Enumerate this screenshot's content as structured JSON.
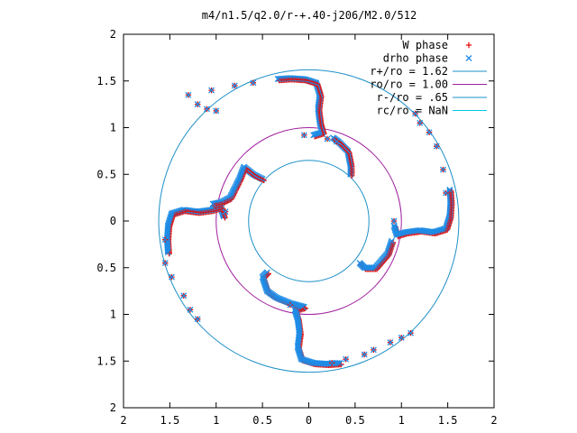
{
  "chart_data": {
    "type": "scatter",
    "title": "m4/n1.5/q2.0/r-+.40-j206/M2.0/512",
    "xlabel": "",
    "ylabel": "",
    "xlim": [
      -2,
      2
    ],
    "ylim": [
      -2,
      2
    ],
    "x_ticks": [
      {
        "value": -2,
        "label": "2"
      },
      {
        "value": -1.5,
        "label": "1.5"
      },
      {
        "value": -1,
        "label": "1"
      },
      {
        "value": -0.5,
        "label": "0.5"
      },
      {
        "value": 0,
        "label": "0"
      },
      {
        "value": 0.5,
        "label": "0.5"
      },
      {
        "value": 1,
        "label": "1"
      },
      {
        "value": 1.5,
        "label": "1.5"
      },
      {
        "value": 2,
        "label": "2"
      }
    ],
    "y_ticks": [
      {
        "value": 2,
        "label": "2"
      },
      {
        "value": 1.5,
        "label": "1.5"
      },
      {
        "value": 1,
        "label": "1"
      },
      {
        "value": 0.5,
        "label": "0.5"
      },
      {
        "value": 0,
        "label": "0"
      },
      {
        "value": -0.5,
        "label": "0.5"
      },
      {
        "value": -1,
        "label": "1"
      },
      {
        "value": -1.5,
        "label": "1.5"
      },
      {
        "value": -2,
        "label": "2"
      }
    ],
    "grid": false,
    "legend_position": "top-right",
    "circles": [
      {
        "name": "r+/ro = 1.62",
        "radius": 1.62,
        "color": "#1e90c8"
      },
      {
        "name": "ro/ro = 1.00",
        "radius": 1.0,
        "color": "#a020a0"
      },
      {
        "name": "r-/ro = .65",
        "radius": 0.65,
        "color": "#1e90c8"
      },
      {
        "name": "rc/ro = NaN",
        "radius": null,
        "color": "#00c8e6"
      }
    ],
    "series": [
      {
        "name": "W phase",
        "marker": "plus",
        "color": "#e01010"
      },
      {
        "name": "drho phase",
        "marker": "cross",
        "color": "#1e8ce6"
      }
    ],
    "arms": [
      [
        [
          0.05,
          0.92
        ],
        [
          0.15,
          0.95
        ],
        [
          0.12,
          1.05
        ],
        [
          0.1,
          1.2
        ],
        [
          0.12,
          1.35
        ],
        [
          0.08,
          1.48
        ],
        [
          -0.05,
          1.52
        ],
        [
          -0.2,
          1.53
        ],
        [
          -0.35,
          1.52
        ]
      ],
      [
        [
          -0.92,
          0.05
        ],
        [
          -0.95,
          0.15
        ],
        [
          -1.05,
          0.12
        ],
        [
          -1.2,
          0.1
        ],
        [
          -1.35,
          0.12
        ],
        [
          -1.48,
          0.08
        ],
        [
          -1.52,
          -0.05
        ],
        [
          -1.53,
          -0.2
        ],
        [
          -1.52,
          -0.35
        ]
      ],
      [
        [
          -0.05,
          -0.92
        ],
        [
          -0.15,
          -0.95
        ],
        [
          -0.12,
          -1.05
        ],
        [
          -0.1,
          -1.2
        ],
        [
          -0.12,
          -1.35
        ],
        [
          -0.08,
          -1.48
        ],
        [
          0.05,
          -1.52
        ],
        [
          0.2,
          -1.53
        ],
        [
          0.35,
          -1.52
        ]
      ],
      [
        [
          0.92,
          -0.05
        ],
        [
          0.95,
          -0.15
        ],
        [
          1.05,
          -0.12
        ],
        [
          1.2,
          -0.1
        ],
        [
          1.35,
          -0.12
        ],
        [
          1.48,
          -0.08
        ],
        [
          1.52,
          0.05
        ],
        [
          1.53,
          0.2
        ],
        [
          1.52,
          0.35
        ]
      ],
      [
        [
          -0.5,
          0.45
        ],
        [
          -0.6,
          0.5
        ],
        [
          -0.7,
          0.58
        ],
        [
          -0.75,
          0.45
        ],
        [
          -0.85,
          0.25
        ],
        [
          -0.95,
          0.2
        ],
        [
          -1.05,
          0.18
        ]
      ],
      [
        [
          0.45,
          0.5
        ],
        [
          0.45,
          0.6
        ],
        [
          0.42,
          0.75
        ],
        [
          0.32,
          0.85
        ],
        [
          0.25,
          0.9
        ]
      ],
      [
        [
          -0.45,
          -0.55
        ],
        [
          -0.5,
          -0.6
        ],
        [
          -0.45,
          -0.75
        ],
        [
          -0.35,
          -0.82
        ],
        [
          -0.2,
          -0.88
        ],
        [
          -0.05,
          -0.92
        ]
      ],
      [
        [
          0.55,
          -0.45
        ],
        [
          0.6,
          -0.5
        ],
        [
          0.72,
          -0.5
        ],
        [
          0.85,
          -0.35
        ],
        [
          0.9,
          -0.2
        ]
      ]
    ],
    "scatter_points": [
      [
        -1.0,
        1.18
      ],
      [
        -1.1,
        1.2
      ],
      [
        -1.2,
        1.25
      ],
      [
        -1.3,
        1.35
      ],
      [
        -1.05,
        1.4
      ],
      [
        -0.8,
        1.45
      ],
      [
        -0.6,
        1.48
      ],
      [
        -1.55,
        -0.2
      ],
      [
        -1.55,
        -0.45
      ],
      [
        -1.48,
        -0.6
      ],
      [
        -1.35,
        -0.8
      ],
      [
        -1.28,
        -0.95
      ],
      [
        -1.2,
        -1.05
      ],
      [
        1.2,
        1.05
      ],
      [
        1.3,
        0.95
      ],
      [
        1.38,
        0.8
      ],
      [
        1.45,
        0.55
      ],
      [
        1.48,
        0.3
      ],
      [
        1.15,
        1.15
      ],
      [
        0.6,
        -1.43
      ],
      [
        0.7,
        -1.38
      ],
      [
        0.88,
        -1.3
      ],
      [
        1.0,
        -1.25
      ],
      [
        1.1,
        -1.2
      ],
      [
        0.4,
        -1.48
      ],
      [
        0.25,
        -1.52
      ],
      [
        0.3,
        0.85
      ],
      [
        0.2,
        0.88
      ],
      [
        -0.2,
        -0.9
      ],
      [
        -0.9,
        0.1
      ],
      [
        0.92,
        0.0
      ],
      [
        -0.05,
        0.92
      ]
    ]
  }
}
